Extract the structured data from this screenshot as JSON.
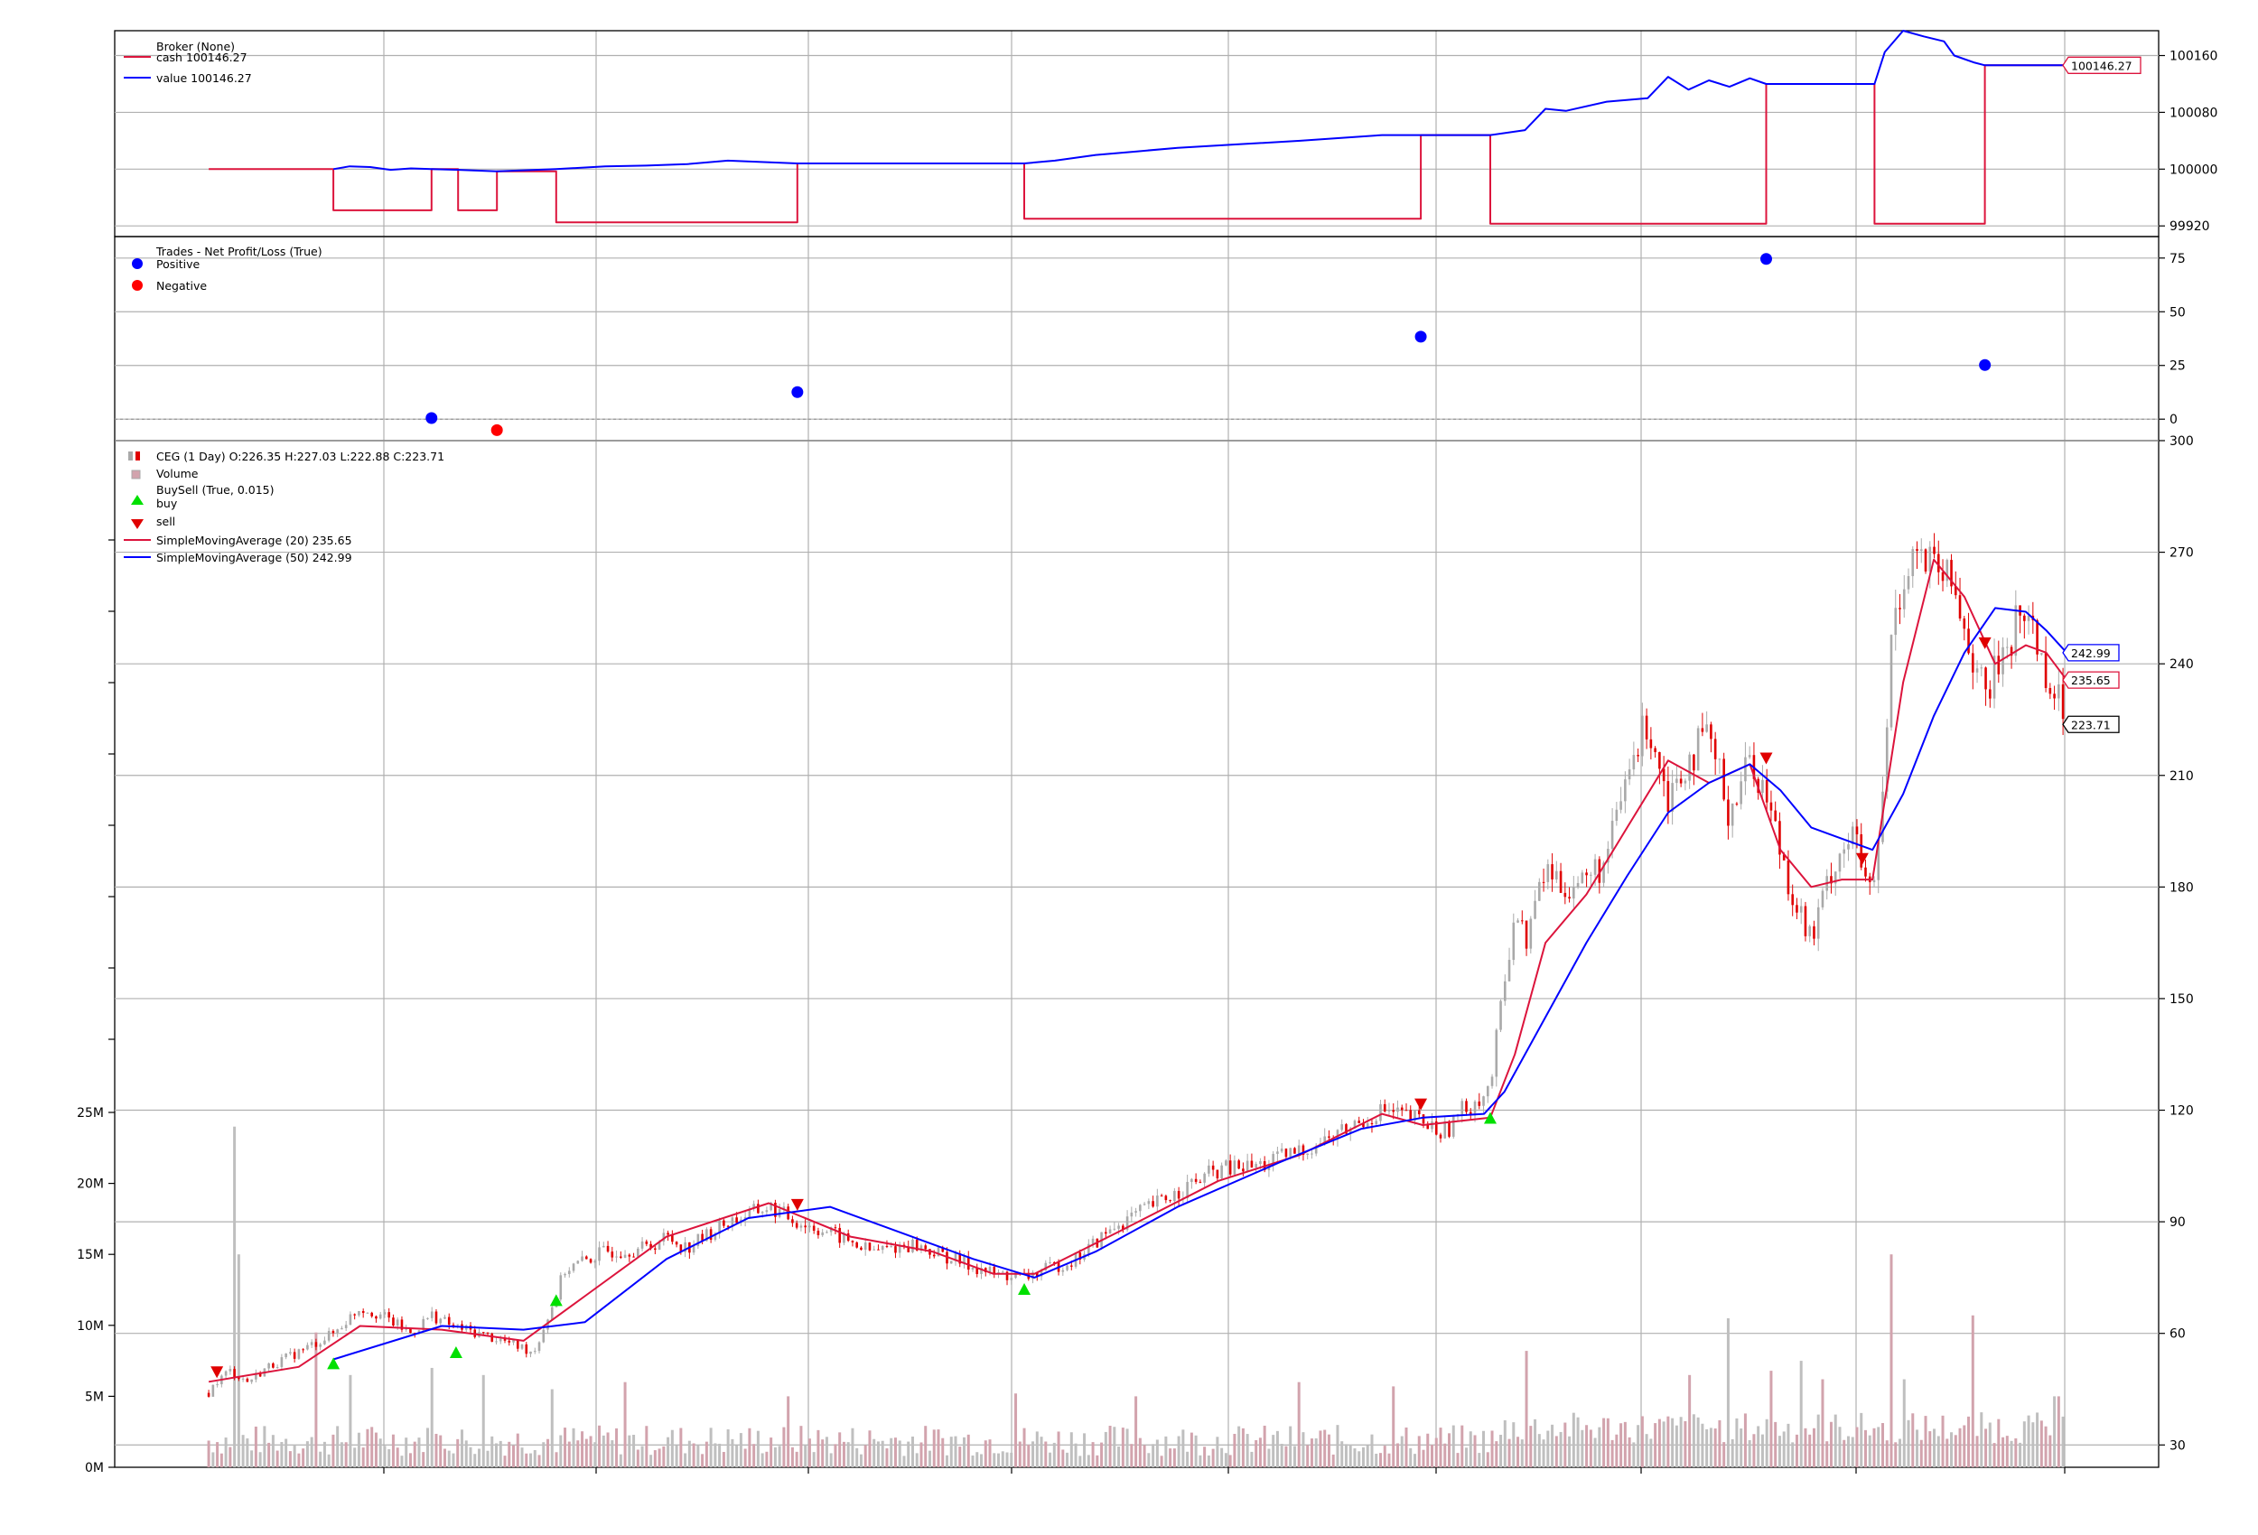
{
  "chart_data": [
    {
      "panel": "broker",
      "type": "line",
      "series": [
        {
          "name": "cash",
          "color": "#dc143c",
          "last": "100146.27"
        },
        {
          "name": "value",
          "color": "#0000ff",
          "last": "100146.27"
        }
      ],
      "legend": {
        "title": "Broker (None)",
        "entries": [
          "cash 100146.27",
          "value 100146.27"
        ],
        "placement": "top-left"
      },
      "ylim": [
        99905,
        100195
      ],
      "yticks": [
        "100160",
        "100080",
        "100000",
        "99920"
      ],
      "last_label": "100146.27",
      "cash_points": [
        [
          0.046,
          100000
        ],
        [
          0.107,
          100000
        ],
        [
          0.107,
          99942
        ],
        [
          0.155,
          99942
        ],
        [
          0.155,
          100000
        ],
        [
          0.168,
          100000
        ],
        [
          0.168,
          99942
        ],
        [
          0.187,
          99942
        ],
        [
          0.187,
          99997
        ],
        [
          0.216,
          99997
        ],
        [
          0.216,
          99925
        ],
        [
          0.334,
          99925
        ],
        [
          0.334,
          100008
        ],
        [
          0.445,
          100008
        ],
        [
          0.445,
          99930
        ],
        [
          0.639,
          99930
        ],
        [
          0.639,
          100048
        ],
        [
          0.673,
          100048
        ],
        [
          0.673,
          99923
        ],
        [
          0.808,
          99923
        ],
        [
          0.808,
          100120
        ],
        [
          0.861,
          100120
        ],
        [
          0.861,
          99923
        ],
        [
          0.915,
          99923
        ],
        [
          0.915,
          100146.27
        ],
        [
          0.955,
          100146.27
        ]
      ],
      "value_points": [
        [
          0.107,
          100000
        ],
        [
          0.115,
          100004
        ],
        [
          0.125,
          100003
        ],
        [
          0.135,
          99999
        ],
        [
          0.145,
          100001
        ],
        [
          0.155,
          100000
        ],
        [
          0.168,
          99999
        ],
        [
          0.187,
          99997
        ],
        [
          0.216,
          100000
        ],
        [
          0.24,
          100004
        ],
        [
          0.26,
          100005
        ],
        [
          0.28,
          100007
        ],
        [
          0.3,
          100012
        ],
        [
          0.334,
          100008
        ],
        [
          0.445,
          100008
        ],
        [
          0.46,
          100012
        ],
        [
          0.48,
          100020
        ],
        [
          0.5,
          100025
        ],
        [
          0.52,
          100030
        ],
        [
          0.55,
          100035
        ],
        [
          0.58,
          100040
        ],
        [
          0.6,
          100044
        ],
        [
          0.62,
          100048
        ],
        [
          0.639,
          100048
        ],
        [
          0.673,
          100048
        ],
        [
          0.69,
          100055
        ],
        [
          0.7,
          100085
        ],
        [
          0.71,
          100082
        ],
        [
          0.73,
          100095
        ],
        [
          0.75,
          100100
        ],
        [
          0.76,
          100130
        ],
        [
          0.77,
          100112
        ],
        [
          0.78,
          100125
        ],
        [
          0.79,
          100116
        ],
        [
          0.8,
          100128
        ],
        [
          0.808,
          100120
        ],
        [
          0.861,
          100120
        ],
        [
          0.866,
          100165
        ],
        [
          0.875,
          100195
        ],
        [
          0.885,
          100187
        ],
        [
          0.895,
          100180
        ],
        [
          0.9,
          100160
        ],
        [
          0.91,
          100150
        ],
        [
          0.915,
          100146.27
        ],
        [
          0.955,
          100146.27
        ]
      ]
    },
    {
      "panel": "trades",
      "type": "scatter",
      "title": "Trades - Net Profit/Loss (True)",
      "legend": {
        "entries": [
          "Positive",
          "Negative"
        ],
        "placement": "top-left"
      },
      "ylim": [
        -10,
        85
      ],
      "yticks": [
        "75",
        "50",
        "25",
        "0"
      ],
      "series": [
        {
          "name": "Positive",
          "color": "#0000ff",
          "points": [
            [
              0.155,
              0.5
            ],
            [
              0.334,
              12.6
            ],
            [
              0.639,
              38.4
            ],
            [
              0.808,
              74.6
            ],
            [
              0.915,
              25.2
            ]
          ]
        },
        {
          "name": "Negative",
          "color": "#ff0000",
          "points": [
            [
              0.187,
              -5.1
            ]
          ]
        }
      ]
    },
    {
      "panel": "price",
      "type": "candlestick",
      "legend": {
        "entries": [
          "CEG (1 Day) O:226.35 H:227.03 L:222.88 C:223.71",
          "Volume",
          "BuySell (True, 0.015)",
          "buy",
          "sell",
          "SimpleMovingAverage (20) 235.65",
          "SimpleMovingAverage (50) 242.99"
        ],
        "placement": "top-left"
      },
      "ylim": [
        24,
        300
      ],
      "yticks": [
        "300",
        "270",
        "240",
        "210",
        "180",
        "150",
        "120",
        "90",
        "60",
        "30"
      ],
      "volume_ticks": [
        "25M",
        "20M",
        "15M",
        "10M",
        "5M",
        "0M"
      ],
      "volume_max": 25000000,
      "last_labels": {
        "sma50": "242.99",
        "sma20": "235.65",
        "close": "223.71"
      },
      "close_path": [
        [
          0.046,
          44
        ],
        [
          0.05,
          47
        ],
        [
          0.056,
          50
        ],
        [
          0.065,
          47
        ],
        [
          0.075,
          51
        ],
        [
          0.09,
          55
        ],
        [
          0.107,
          60
        ],
        [
          0.12,
          67
        ],
        [
          0.13,
          65
        ],
        [
          0.145,
          60
        ],
        [
          0.155,
          65
        ],
        [
          0.165,
          62
        ],
        [
          0.178,
          60
        ],
        [
          0.19,
          58
        ],
        [
          0.205,
          55
        ],
        [
          0.216,
          70
        ],
        [
          0.22,
          77
        ],
        [
          0.24,
          82
        ],
        [
          0.26,
          83
        ],
        [
          0.27,
          86
        ],
        [
          0.28,
          83
        ],
        [
          0.3,
          90
        ],
        [
          0.32,
          94
        ],
        [
          0.334,
          90
        ],
        [
          0.35,
          87
        ],
        [
          0.37,
          82
        ],
        [
          0.39,
          84
        ],
        [
          0.41,
          80
        ],
        [
          0.43,
          76
        ],
        [
          0.445,
          75
        ],
        [
          0.47,
          80
        ],
        [
          0.49,
          89
        ],
        [
          0.52,
          98
        ],
        [
          0.54,
          104
        ],
        [
          0.56,
          105
        ],
        [
          0.58,
          109
        ],
        [
          0.6,
          114
        ],
        [
          0.62,
          120
        ],
        [
          0.639,
          117
        ],
        [
          0.65,
          114
        ],
        [
          0.66,
          120
        ],
        [
          0.673,
          126
        ],
        [
          0.685,
          175
        ],
        [
          0.69,
          165
        ],
        [
          0.7,
          185
        ],
        [
          0.71,
          180
        ],
        [
          0.72,
          182
        ],
        [
          0.73,
          187
        ],
        [
          0.74,
          210
        ],
        [
          0.75,
          225
        ],
        [
          0.76,
          205
        ],
        [
          0.77,
          215
        ],
        [
          0.78,
          220
        ],
        [
          0.79,
          200
        ],
        [
          0.8,
          215
        ],
        [
          0.808,
          205
        ],
        [
          0.82,
          180
        ],
        [
          0.83,
          165
        ],
        [
          0.84,
          185
        ],
        [
          0.85,
          195
        ],
        [
          0.86,
          175
        ],
        [
          0.866,
          210
        ],
        [
          0.87,
          255
        ],
        [
          0.88,
          270
        ],
        [
          0.89,
          265
        ],
        [
          0.9,
          260
        ],
        [
          0.91,
          240
        ],
        [
          0.915,
          230
        ],
        [
          0.925,
          245
        ],
        [
          0.935,
          255
        ],
        [
          0.945,
          238
        ],
        [
          0.955,
          223.71
        ]
      ],
      "sma20": [
        [
          0.046,
          47
        ],
        [
          0.09,
          51
        ],
        [
          0.12,
          62
        ],
        [
          0.16,
          61
        ],
        [
          0.2,
          58
        ],
        [
          0.23,
          70
        ],
        [
          0.27,
          86
        ],
        [
          0.32,
          95
        ],
        [
          0.36,
          86
        ],
        [
          0.4,
          82
        ],
        [
          0.43,
          76
        ],
        [
          0.45,
          76
        ],
        [
          0.49,
          87
        ],
        [
          0.54,
          101
        ],
        [
          0.58,
          108
        ],
        [
          0.62,
          119
        ],
        [
          0.64,
          116
        ],
        [
          0.673,
          118
        ],
        [
          0.685,
          135
        ],
        [
          0.7,
          165
        ],
        [
          0.72,
          178
        ],
        [
          0.74,
          196
        ],
        [
          0.76,
          214
        ],
        [
          0.78,
          208
        ],
        [
          0.8,
          213
        ],
        [
          0.815,
          190
        ],
        [
          0.83,
          180
        ],
        [
          0.845,
          182
        ],
        [
          0.86,
          182
        ],
        [
          0.875,
          235
        ],
        [
          0.89,
          268
        ],
        [
          0.905,
          258
        ],
        [
          0.92,
          240
        ],
        [
          0.935,
          245
        ],
        [
          0.945,
          243
        ],
        [
          0.955,
          235.65
        ]
      ],
      "sma50": [
        [
          0.107,
          53
        ],
        [
          0.16,
          62
        ],
        [
          0.2,
          61
        ],
        [
          0.23,
          63
        ],
        [
          0.27,
          80
        ],
        [
          0.31,
          91
        ],
        [
          0.35,
          94
        ],
        [
          0.39,
          86
        ],
        [
          0.42,
          80
        ],
        [
          0.45,
          75
        ],
        [
          0.48,
          82
        ],
        [
          0.52,
          94
        ],
        [
          0.57,
          106
        ],
        [
          0.61,
          115
        ],
        [
          0.64,
          118
        ],
        [
          0.67,
          119
        ],
        [
          0.68,
          125
        ],
        [
          0.7,
          145
        ],
        [
          0.72,
          165
        ],
        [
          0.74,
          183
        ],
        [
          0.76,
          200
        ],
        [
          0.78,
          208
        ],
        [
          0.8,
          213
        ],
        [
          0.815,
          206
        ],
        [
          0.83,
          196
        ],
        [
          0.845,
          193
        ],
        [
          0.86,
          190
        ],
        [
          0.875,
          205
        ],
        [
          0.89,
          226
        ],
        [
          0.905,
          243
        ],
        [
          0.92,
          255
        ],
        [
          0.935,
          254
        ],
        [
          0.945,
          249
        ],
        [
          0.955,
          242.99
        ]
      ],
      "buy_markers": [
        [
          0.107,
          54
        ],
        [
          0.167,
          57
        ],
        [
          0.216,
          71
        ],
        [
          0.445,
          74
        ],
        [
          0.673,
          120
        ]
      ],
      "sell_markers": [
        [
          0.05,
          47
        ],
        [
          0.334,
          92
        ],
        [
          0.639,
          119
        ],
        [
          0.808,
          212
        ],
        [
          0.855,
          185
        ],
        [
          0.915,
          243
        ]
      ],
      "volume_spikes": [
        [
          0.058,
          24000000
        ],
        [
          0.06,
          15000000
        ],
        [
          0.098,
          9500000
        ],
        [
          0.115,
          6500000
        ],
        [
          0.155,
          7000000
        ],
        [
          0.18,
          6500000
        ],
        [
          0.213,
          5500000
        ],
        [
          0.25,
          6000000
        ],
        [
          0.33,
          5000000
        ],
        [
          0.44,
          5200000
        ],
        [
          0.5,
          5000000
        ],
        [
          0.58,
          6000000
        ],
        [
          0.625,
          5700000
        ],
        [
          0.69,
          8200000
        ],
        [
          0.77,
          6500000
        ],
        [
          0.79,
          10500000
        ],
        [
          0.81,
          6800000
        ],
        [
          0.825,
          7500000
        ],
        [
          0.835,
          6200000
        ],
        [
          0.87,
          15000000
        ],
        [
          0.875,
          6200000
        ],
        [
          0.91,
          10700000
        ],
        [
          0.95,
          5000000
        ]
      ]
    }
  ]
}
